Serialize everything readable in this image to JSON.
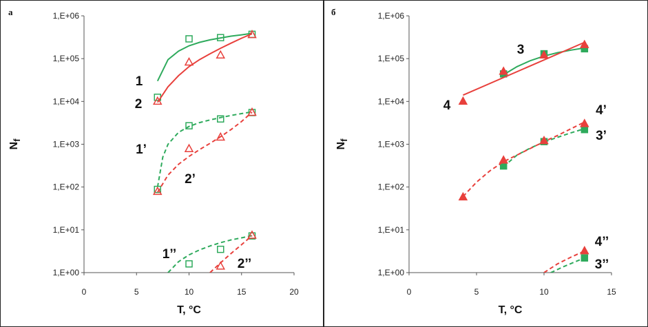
{
  "chart_data": [
    {
      "panel": "а",
      "type": "scatter",
      "xlabel": "T, °C",
      "ylabel": "Nf",
      "xlim": [
        0,
        20
      ],
      "xticks": [
        0,
        5,
        10,
        15,
        20
      ],
      "xtick_labels": [
        "0",
        "5",
        "10",
        "15",
        "20"
      ],
      "yscale": "log",
      "ylim": [
        1,
        1000000
      ],
      "ytick_labels": [
        "1,E+00",
        "1,E+01",
        "1,E+02",
        "1,E+03",
        "1,E+04",
        "1,E+05",
        "1,E+06"
      ],
      "series": [
        {
          "name": "1",
          "label": "1",
          "color": "#2eaa5c",
          "marker": "square-open",
          "line": "solid",
          "x": [
            7,
            10,
            13,
            16
          ],
          "y": [
            12500,
            290000,
            310000,
            370000
          ],
          "fit_x": [
            7,
            8,
            9,
            10,
            11,
            12,
            13,
            14,
            15,
            16
          ],
          "fit_y": [
            30000,
            95000,
            150000,
            200000,
            240000,
            275000,
            305000,
            335000,
            360000,
            390000
          ]
        },
        {
          "name": "2",
          "label": "2",
          "color": "#e8403c",
          "marker": "triangle-open",
          "line": "solid",
          "x": [
            7,
            10,
            13,
            16
          ],
          "y": [
            10000,
            82000,
            120000,
            360000
          ],
          "fit_x": [
            7,
            8,
            9,
            10,
            11,
            12,
            13,
            14,
            15,
            16
          ],
          "fit_y": [
            9500,
            22000,
            40000,
            65000,
            95000,
            130000,
            175000,
            230000,
            300000,
            380000
          ]
        },
        {
          "name": "1'",
          "label": "1’",
          "color": "#2eaa5c",
          "marker": "square-open",
          "line": "dashed",
          "x": [
            7,
            10,
            13,
            16
          ],
          "y": [
            88,
            2700,
            3900,
            5500
          ],
          "fit_x": [
            7,
            7.5,
            8,
            9,
            10,
            11,
            12,
            13,
            14,
            15,
            16
          ],
          "fit_y": [
            100,
            500,
            1000,
            1900,
            2600,
            3200,
            3700,
            4200,
            4700,
            5200,
            5700
          ]
        },
        {
          "name": "2'",
          "label": "2’",
          "color": "#e8403c",
          "marker": "triangle-open",
          "line": "dashed",
          "x": [
            7,
            10,
            13,
            16
          ],
          "y": [
            78,
            780,
            1450,
            5500
          ],
          "fit_x": [
            7,
            8,
            9,
            10,
            11,
            12,
            13,
            14,
            15,
            16
          ],
          "fit_y": [
            75,
            190,
            340,
            520,
            750,
            1050,
            1500,
            2200,
            3400,
            5600
          ]
        },
        {
          "name": "1''",
          "label": "1’’",
          "color": "#2eaa5c",
          "marker": "square-open",
          "line": "dashed",
          "x": [
            10,
            13,
            16
          ],
          "y": [
            1.6,
            3.5,
            7.2
          ],
          "fit_x": [
            8,
            9,
            10,
            11,
            12,
            13,
            14,
            15,
            16
          ],
          "fit_y": [
            1.0,
            1.8,
            2.6,
            3.4,
            4.2,
            5.0,
            5.8,
            6.5,
            7.3
          ]
        },
        {
          "name": "2''",
          "label": "2’’",
          "color": "#e8403c",
          "marker": "triangle-open",
          "line": "dashed",
          "x": [
            13,
            16
          ],
          "y": [
            1.4,
            7.4
          ],
          "fit_x": [
            12,
            13,
            14,
            15,
            16
          ],
          "fit_y": [
            1.0,
            1.7,
            2.8,
            4.5,
            7.3
          ]
        }
      ]
    },
    {
      "panel": "б",
      "type": "scatter",
      "xlabel": "T, °C",
      "ylabel": "Nf",
      "xlim": [
        0,
        15
      ],
      "xticks": [
        0,
        5,
        10,
        15
      ],
      "xtick_labels": [
        "0",
        "5",
        "10",
        "15"
      ],
      "yscale": "log",
      "ylim": [
        1,
        1000000
      ],
      "ytick_labels": [
        "1,E+00",
        "1,E+01",
        "1,E+02",
        "1,E+03",
        "1,E+04",
        "1,E+05",
        "1,E+06"
      ],
      "series": [
        {
          "name": "3",
          "label": "3",
          "color": "#2eaa5c",
          "marker": "square-filled",
          "line": "solid",
          "x": [
            7,
            10,
            13
          ],
          "y": [
            44000,
            130000,
            170000
          ],
          "fit_x": [
            7,
            8,
            9,
            10,
            11,
            12,
            13
          ],
          "fit_y": [
            42000,
            65000,
            90000,
            115000,
            138000,
            158000,
            178000
          ]
        },
        {
          "name": "4",
          "label": "4",
          "color": "#e8403c",
          "marker": "triangle-filled",
          "line": "solid",
          "x": [
            4,
            7,
            10,
            13
          ],
          "y": [
            10000,
            50000,
            120000,
            210000
          ],
          "fit_x": [
            4,
            13
          ],
          "fit_y": [
            14000,
            240000
          ]
        },
        {
          "name": "3'",
          "label": "3’",
          "color": "#2eaa5c",
          "marker": "square-filled",
          "line": "dashed",
          "x": [
            7,
            10,
            13
          ],
          "y": [
            310,
            1150,
            2200
          ],
          "fit_x": [
            7,
            8,
            9,
            10,
            11,
            12,
            13
          ],
          "fit_y": [
            300,
            560,
            820,
            1120,
            1450,
            1850,
            2300
          ]
        },
        {
          "name": "4'",
          "label": "4’",
          "color": "#e8403c",
          "marker": "triangle-filled",
          "line": "dashed",
          "x": [
            4,
            7,
            10,
            13
          ],
          "y": [
            58,
            420,
            1200,
            3000
          ],
          "fit_x": [
            4,
            5,
            6,
            7,
            8,
            9,
            10,
            11,
            12,
            13
          ],
          "fit_y": [
            60,
            130,
            240,
            390,
            560,
            800,
            1150,
            1600,
            2300,
            3300
          ]
        },
        {
          "name": "3''",
          "label": "3’’",
          "color": "#2eaa5c",
          "marker": "square-filled",
          "line": "dashed",
          "x": [
            13
          ],
          "y": [
            2.2
          ],
          "fit_x": [
            10.5,
            11.5,
            12.5,
            13
          ],
          "fit_y": [
            1.0,
            1.4,
            1.9,
            2.2
          ]
        },
        {
          "name": "4''",
          "label": "4’’",
          "color": "#e8403c",
          "marker": "triangle-filled",
          "line": "dashed",
          "x": [
            13
          ],
          "y": [
            3.2
          ],
          "fit_x": [
            10,
            11,
            12,
            13
          ],
          "fit_y": [
            1.0,
            1.6,
            2.3,
            3.2
          ]
        }
      ]
    }
  ]
}
